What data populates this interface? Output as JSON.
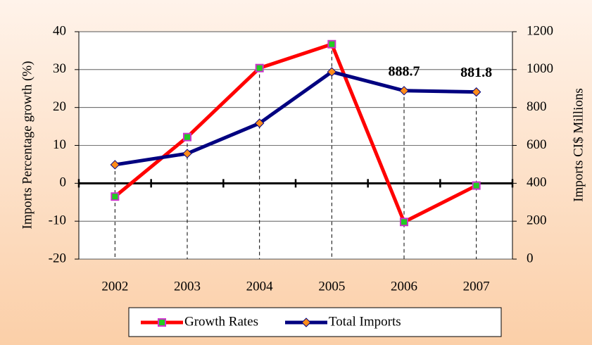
{
  "chart_data": {
    "type": "line",
    "categories": [
      "2002",
      "2003",
      "2004",
      "2005",
      "2006",
      "2007"
    ],
    "ylabel": "Imports Percentage growth (%)",
    "y2label": "Imports CI$ Millions",
    "ylim": [
      -20,
      40
    ],
    "yticks": [
      -20,
      -10,
      0,
      10,
      20,
      30,
      40
    ],
    "y2lim": [
      0,
      1200
    ],
    "y2ticks": [
      0,
      200,
      400,
      600,
      800,
      1000,
      1200
    ],
    "grid": true,
    "legend": "bottom",
    "series": [
      {
        "name": "Growth Rates",
        "color": "#ff0000",
        "marker_color": "#22cc22",
        "marker_edge": "#cc33cc",
        "values": [
          -3.5,
          12.2,
          30.4,
          36.7,
          -10.2,
          -0.6
        ]
      },
      {
        "name": "Total Imports",
        "color": "#000080",
        "marker_color": "#ff8c1a",
        "marker_edge": "#000080",
        "axis": "y2",
        "values": [
          498,
          557,
          717,
          988,
          888.7,
          881.8
        ],
        "value_labels": [
          null,
          null,
          null,
          null,
          "888.7",
          "881.8"
        ]
      }
    ]
  }
}
